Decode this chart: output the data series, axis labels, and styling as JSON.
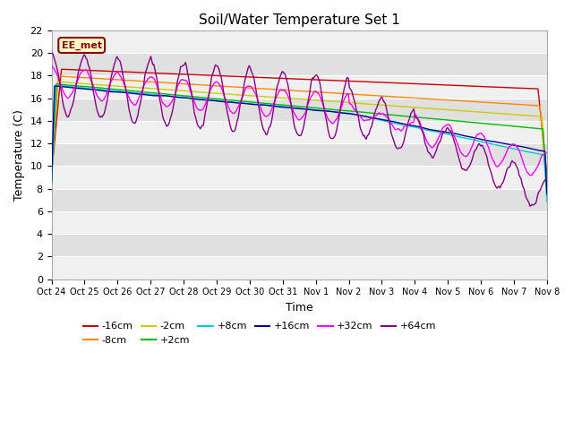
{
  "title": "Soil/Water Temperature Set 1",
  "xlabel": "Time",
  "ylabel": "Temperature (C)",
  "ylim": [
    0,
    22
  ],
  "yticks": [
    0,
    2,
    4,
    6,
    8,
    10,
    12,
    14,
    16,
    18,
    20,
    22
  ],
  "annotation_text": "EE_met",
  "annotation_bg": "#ffffcc",
  "annotation_border": "#8b0000",
  "fig_bg": "#ffffff",
  "plot_bg_light": "#f0f0f0",
  "plot_bg_dark": "#e0e0e0",
  "grid_color": "#ffffff",
  "series_colors": {
    "-16cm": "#cc0000",
    "-8cm": "#ff8800",
    "-2cm": "#cccc00",
    "+2cm": "#00bb00",
    "+8cm": "#00cccc",
    "+16cm": "#000099",
    "+32cm": "#ff00ff",
    "+64cm": "#880088"
  },
  "x_labels": [
    "Oct 24",
    "Oct 25",
    "Oct 26",
    "Oct 27",
    "Oct 28",
    "Oct 29",
    "Oct 30",
    "Oct 31",
    "Nov 1",
    "Nov 2",
    "Nov 3",
    "Nov 4",
    "Nov 5",
    "Nov 6",
    "Nov 7",
    "Nov 8"
  ],
  "legend_entries": [
    "-16cm",
    "-8cm",
    "-2cm",
    "+2cm",
    "+8cm",
    "+16cm",
    "+32cm",
    "+64cm"
  ]
}
